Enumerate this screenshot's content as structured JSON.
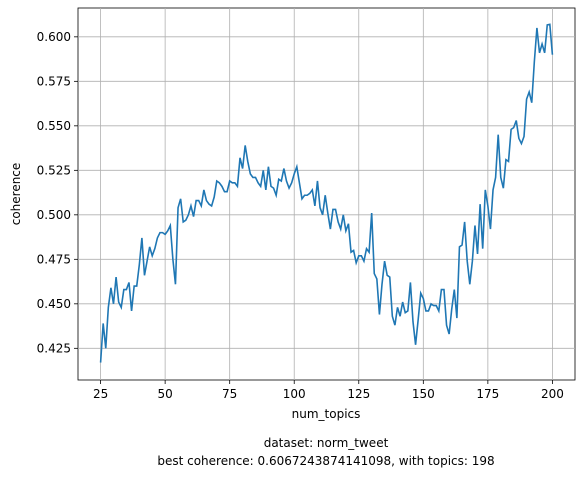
{
  "chart_data": {
    "type": "line",
    "xlabel": "num_topics",
    "ylabel": "coherence",
    "caption": [
      "dataset: norm_tweet",
      "best coherence: 0.6067243874141098, with topics: 198"
    ],
    "x": [
      25,
      26,
      27,
      28,
      29,
      30,
      31,
      32,
      33,
      34,
      35,
      36,
      37,
      38,
      39,
      40,
      41,
      42,
      43,
      44,
      45,
      46,
      47,
      48,
      49,
      50,
      51,
      52,
      53,
      54,
      55,
      56,
      57,
      58,
      59,
      60,
      61,
      62,
      63,
      64,
      65,
      66,
      67,
      68,
      69,
      70,
      71,
      72,
      73,
      74,
      75,
      76,
      77,
      78,
      79,
      80,
      81,
      82,
      83,
      84,
      85,
      86,
      87,
      88,
      89,
      90,
      91,
      92,
      93,
      94,
      95,
      96,
      97,
      98,
      99,
      100,
      101,
      102,
      103,
      104,
      105,
      106,
      107,
      108,
      109,
      110,
      111,
      112,
      113,
      114,
      115,
      116,
      117,
      118,
      119,
      120,
      121,
      122,
      123,
      124,
      125,
      126,
      127,
      128,
      129,
      130,
      131,
      132,
      133,
      134,
      135,
      136,
      137,
      138,
      139,
      140,
      141,
      142,
      143,
      144,
      145,
      146,
      147,
      148,
      149,
      150,
      151,
      152,
      153,
      154,
      155,
      156,
      157,
      158,
      159,
      160,
      161,
      162,
      163,
      164,
      165,
      166,
      167,
      168,
      169,
      170,
      171,
      172,
      173,
      174,
      175,
      176,
      177,
      178,
      179,
      180,
      181,
      182,
      183,
      184,
      185,
      186,
      187,
      188,
      189,
      190,
      191,
      192,
      193,
      194,
      195,
      196,
      197,
      198,
      199,
      200
    ],
    "series": [
      {
        "name": "coherence",
        "color": "#1f77b4",
        "values": [
          0.417,
          0.439,
          0.425,
          0.448,
          0.459,
          0.45,
          0.465,
          0.451,
          0.448,
          0.458,
          0.458,
          0.462,
          0.446,
          0.46,
          0.46,
          0.472,
          0.487,
          0.466,
          0.474,
          0.482,
          0.477,
          0.481,
          0.487,
          0.49,
          0.49,
          0.489,
          0.491,
          0.494,
          0.475,
          0.461,
          0.504,
          0.509,
          0.496,
          0.497,
          0.5,
          0.505,
          0.499,
          0.508,
          0.508,
          0.505,
          0.514,
          0.508,
          0.506,
          0.505,
          0.51,
          0.519,
          0.518,
          0.516,
          0.513,
          0.513,
          0.519,
          0.518,
          0.518,
          0.516,
          0.532,
          0.526,
          0.539,
          0.53,
          0.523,
          0.521,
          0.521,
          0.518,
          0.516,
          0.525,
          0.514,
          0.527,
          0.516,
          0.515,
          0.511,
          0.52,
          0.519,
          0.526,
          0.519,
          0.515,
          0.518,
          0.523,
          0.527,
          0.518,
          0.509,
          0.511,
          0.511,
          0.512,
          0.514,
          0.505,
          0.519,
          0.504,
          0.5,
          0.511,
          0.501,
          0.492,
          0.503,
          0.503,
          0.496,
          0.492,
          0.5,
          0.491,
          0.495,
          0.479,
          0.48,
          0.473,
          0.477,
          0.477,
          0.474,
          0.481,
          0.479,
          0.501,
          0.467,
          0.464,
          0.444,
          0.461,
          0.474,
          0.466,
          0.465,
          0.443,
          0.438,
          0.448,
          0.443,
          0.451,
          0.445,
          0.446,
          0.462,
          0.44,
          0.427,
          0.441,
          0.456,
          0.453,
          0.446,
          0.446,
          0.45,
          0.449,
          0.449,
          0.446,
          0.458,
          0.458,
          0.438,
          0.433,
          0.447,
          0.458,
          0.442,
          0.482,
          0.483,
          0.496,
          0.474,
          0.461,
          0.474,
          0.494,
          0.478,
          0.506,
          0.481,
          0.514,
          0.505,
          0.492,
          0.514,
          0.521,
          0.545,
          0.521,
          0.515,
          0.531,
          0.53,
          0.548,
          0.549,
          0.553,
          0.543,
          0.54,
          0.544,
          0.565,
          0.569,
          0.563,
          0.586,
          0.605,
          0.591,
          0.596,
          0.591,
          0.6067,
          0.607,
          0.59
        ]
      }
    ],
    "xlim": [
      16.25,
      208.75
    ],
    "ylim": [
      0.4072,
      0.6162
    ],
    "xticks": [
      25,
      50,
      75,
      100,
      125,
      150,
      175,
      200
    ],
    "yticks": [
      0.425,
      {
        "value": 0.45,
        "label": "0.450"
      },
      0.475,
      {
        "value": 0.5,
        "label": "0.500"
      },
      0.525,
      {
        "value": 0.55,
        "label": "0.550"
      },
      0.575,
      {
        "value": 0.6,
        "label": "0.600"
      }
    ],
    "grid": true
  }
}
